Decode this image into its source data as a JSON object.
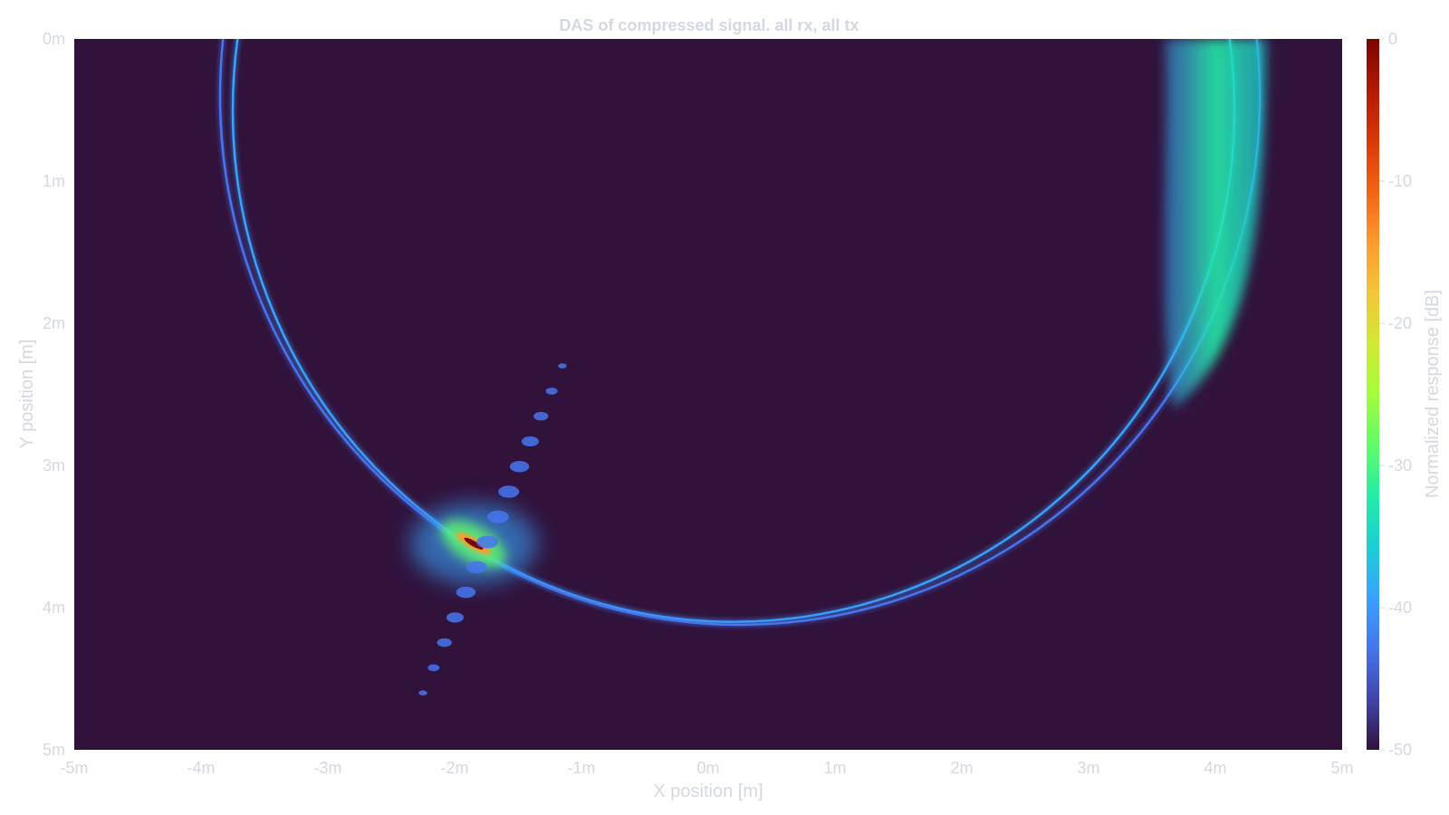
{
  "chart_data": {
    "type": "heatmap",
    "title": "DAS of compressed signal. all rx, all tx",
    "xlabel": "X position [m]",
    "ylabel": "Y position [m]",
    "xlim": [
      -5,
      5
    ],
    "ylim": [
      0,
      5
    ],
    "y_inverted": true,
    "x_ticks": [
      "-5m",
      "-4m",
      "-3m",
      "-2m",
      "-1m",
      "0m",
      "1m",
      "2m",
      "3m",
      "4m",
      "5m"
    ],
    "y_ticks": [
      "0m",
      "1m",
      "2m",
      "3m",
      "4m",
      "5m"
    ],
    "colorbar": {
      "label": "Normalized response [dB]",
      "range": [
        -50,
        0
      ],
      "ticks": [
        "0",
        "-10",
        "-20",
        "-30",
        "-40",
        "-50"
      ],
      "background_color": "#30123b",
      "stops": [
        "#30123b",
        "#4145ab",
        "#4675ed",
        "#39a2fc",
        "#1bcfd4",
        "#24eca6",
        "#61fc6c",
        "#a4fc3b",
        "#d1e834",
        "#f3c63a",
        "#fe9b2d",
        "#f36315",
        "#d93806",
        "#b11901",
        "#7a0402"
      ]
    },
    "features": [
      {
        "kind": "ellipse-arc",
        "cx": 0.2,
        "cy": 0.5,
        "rx": 3.95,
        "ry": 3.6,
        "level_db": -41
      },
      {
        "kind": "ellipse-arc",
        "cx": 0.25,
        "cy": 0.4,
        "rx": 4.1,
        "ry": 3.72,
        "level_db": -42
      },
      {
        "kind": "focal-spot",
        "x": -1.85,
        "y": 3.55,
        "level_db": 0
      },
      {
        "kind": "side-lobes",
        "from": [
          -2.25,
          4.6
        ],
        "to": [
          -1.15,
          2.3
        ],
        "level_db": -44
      },
      {
        "kind": "wide-band",
        "x_range": [
          3.6,
          4.4
        ],
        "y_range": [
          0,
          2.6
        ],
        "level_db": -32
      }
    ]
  }
}
